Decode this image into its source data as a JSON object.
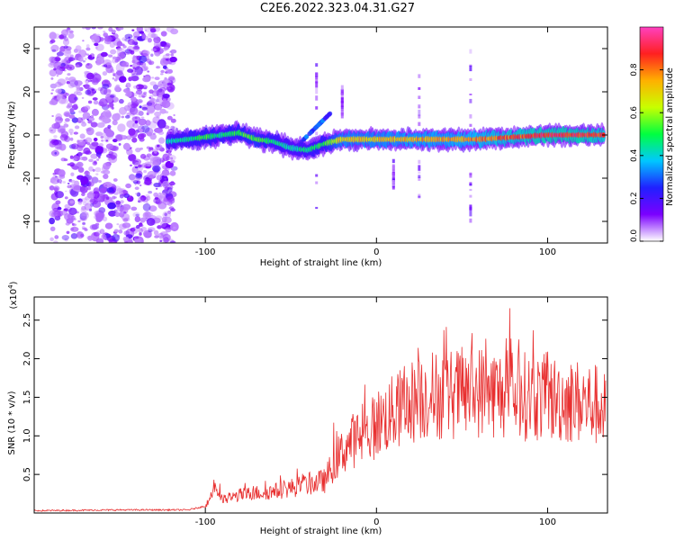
{
  "title": "C2E6.2022.323.04.31.G27",
  "chart_data": [
    {
      "type": "heatmap",
      "xlabel": "Height of straight line (km)",
      "ylabel": "Frequency (Hz)",
      "xlim": [
        -200,
        135
      ],
      "ylim": [
        -50,
        50
      ],
      "xticks": [
        -100,
        0,
        100
      ],
      "yticks": [
        -40,
        -20,
        0,
        20,
        40
      ],
      "colorbar": {
        "label": "Normalized spectral amplitude",
        "range": [
          0,
          1
        ],
        "ticks": [
          "0.0",
          "0.2",
          "0.4",
          "0.6",
          "0.8"
        ],
        "colors": [
          "#ffffff",
          "#7b00ff",
          "#2020ff",
          "#00c8ff",
          "#00ff40",
          "#c8ff00",
          "#ffb000",
          "#ff2020",
          "#ff40c0"
        ]
      },
      "noise_region": {
        "x": [
          -190,
          -118
        ],
        "y": [
          -50,
          50
        ]
      },
      "ridge": {
        "x": [
          -122,
          -110,
          -100,
          -90,
          -80,
          -70,
          -60,
          -50,
          -40,
          -30,
          -20,
          -10,
          0,
          20,
          40,
          60,
          80,
          100,
          120,
          133
        ],
        "y": [
          -3,
          -2,
          -1,
          0,
          1,
          -2,
          -3,
          -6,
          -7,
          -4,
          -2,
          -2,
          -2,
          -2,
          -2,
          -2,
          -1,
          0,
          0,
          0
        ],
        "amplitude": [
          0.45,
          0.5,
          0.55,
          0.5,
          0.55,
          0.6,
          0.5,
          0.45,
          0.5,
          0.55,
          0.75,
          0.75,
          0.75,
          0.8,
          0.8,
          0.85,
          0.9,
          0.95,
          0.95,
          0.9
        ]
      }
    },
    {
      "type": "line",
      "xlabel": "Height of straight line (km)",
      "ylabel": "SNR (10 * v/v)",
      "y_scale_label": "(x10",
      "y_scale_exponent": "4",
      "y_scale_close": ")",
      "xlim": [
        -200,
        135
      ],
      "ylim": [
        0,
        2.8
      ],
      "xticks": [
        -100,
        0,
        100
      ],
      "yticks": [
        "0.5",
        "1.0",
        "1.5",
        "2.0",
        "2.5"
      ],
      "color": "#e83030",
      "series": [
        {
          "x": [
            -200,
            -150,
            -110,
            -100,
            -97,
            -95,
            -90,
            -80,
            -70,
            -60,
            -50,
            -40,
            -30,
            -25,
            -20,
            -15,
            -10,
            -5,
            0,
            10,
            20,
            30,
            40,
            60,
            80,
            100,
            120,
            130,
            134
          ],
          "y": [
            0.02,
            0.03,
            0.03,
            0.08,
            0.22,
            0.4,
            0.18,
            0.25,
            0.28,
            0.3,
            0.35,
            0.4,
            0.45,
            0.7,
            0.85,
            1.0,
            1.05,
            1.1,
            1.25,
            1.4,
            1.55,
            1.65,
            1.65,
            1.7,
            1.65,
            1.6,
            1.55,
            1.5,
            1.4
          ]
        }
      ]
    }
  ]
}
